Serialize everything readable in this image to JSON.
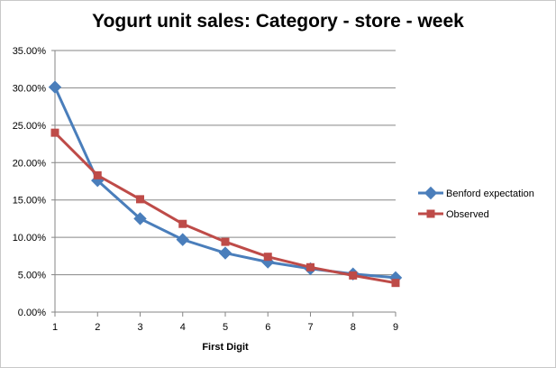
{
  "chart_data": {
    "type": "line",
    "title": "Yogurt unit sales: Category - store - week",
    "xlabel": "First Digit",
    "ylabel": "",
    "x": [
      1,
      2,
      3,
      4,
      5,
      6,
      7,
      8,
      9
    ],
    "ylim": [
      0,
      0.35
    ],
    "ytick_step": 0.05,
    "ytick_labels": [
      "0.00%",
      "5.00%",
      "10.00%",
      "15.00%",
      "20.00%",
      "25.00%",
      "30.00%",
      "35.00%"
    ],
    "xtick_labels": [
      "1",
      "2",
      "3",
      "4",
      "5",
      "6",
      "7",
      "8",
      "9"
    ],
    "grid": "horizontal",
    "legend_position": "right",
    "series": [
      {
        "name": "Benford expectation",
        "color": "#4a7ebb",
        "marker": "diamond",
        "values": [
          0.301,
          0.176,
          0.125,
          0.097,
          0.079,
          0.067,
          0.058,
          0.051,
          0.046
        ]
      },
      {
        "name": "Observed",
        "color": "#be4b48",
        "marker": "square",
        "values": [
          0.24,
          0.183,
          0.151,
          0.118,
          0.094,
          0.074,
          0.06,
          0.049,
          0.039
        ]
      }
    ]
  }
}
